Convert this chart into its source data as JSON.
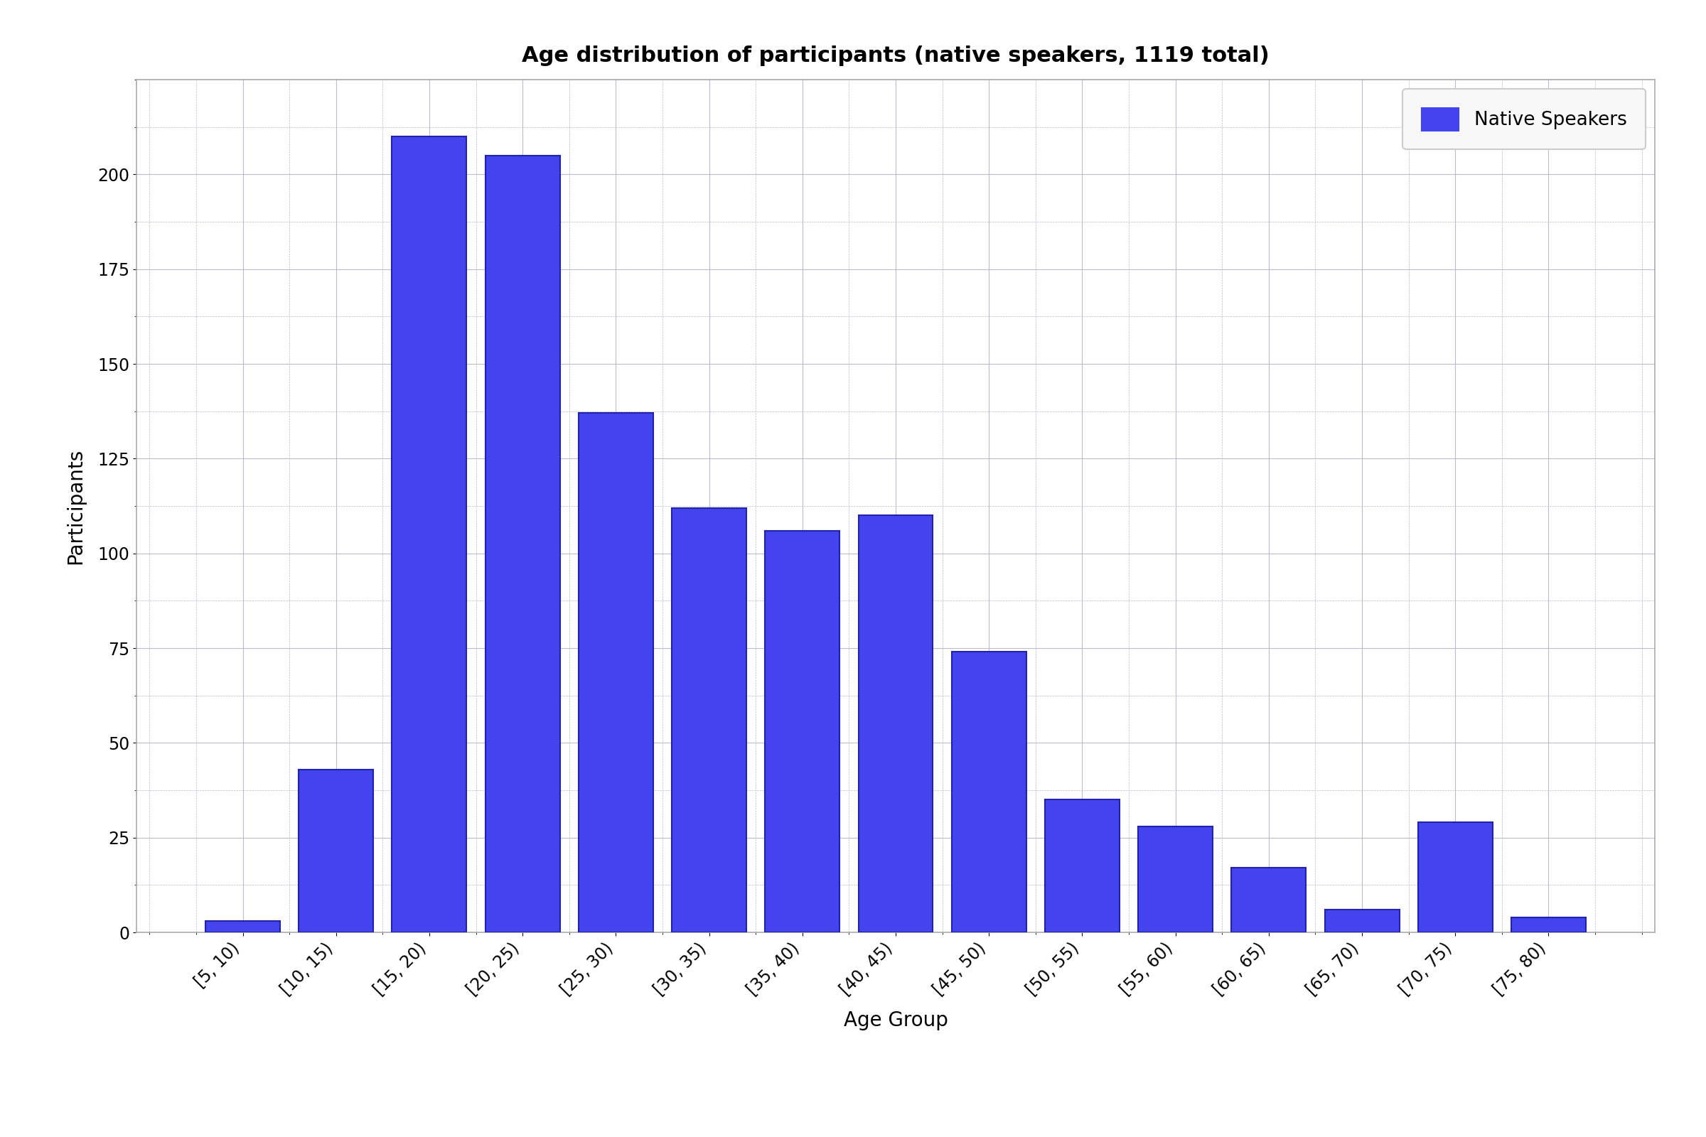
{
  "title": "Age distribution of participants (native speakers, 1119 total)",
  "xlabel": "Age Group",
  "ylabel": "Participants",
  "bar_color": "#4444ee",
  "bar_edgecolor": "#2222aa",
  "legend_label": "Native Speakers",
  "categories": [
    "[5, 10)",
    "[10, 15)",
    "[15, 20)",
    "[20, 25)",
    "[25, 30)",
    "[30, 35)",
    "[35, 40)",
    "[40, 45)",
    "[45, 50)",
    "[50, 55)",
    "[55, 60)",
    "[60, 65)",
    "[65, 70)",
    "[70, 75)",
    "[75, 80)"
  ],
  "values": [
    3,
    43,
    210,
    205,
    137,
    112,
    106,
    110,
    74,
    35,
    28,
    17,
    6,
    29,
    4
  ],
  "ylim": [
    0,
    225
  ],
  "yticks": [
    0,
    25,
    50,
    75,
    100,
    125,
    150,
    175,
    200
  ],
  "title_fontsize": 22,
  "axis_label_fontsize": 20,
  "tick_fontsize": 17,
  "legend_fontsize": 19,
  "background_color": "#ffffff",
  "grid_color": "#bbbbcc",
  "spine_color": "#aaaaaa"
}
